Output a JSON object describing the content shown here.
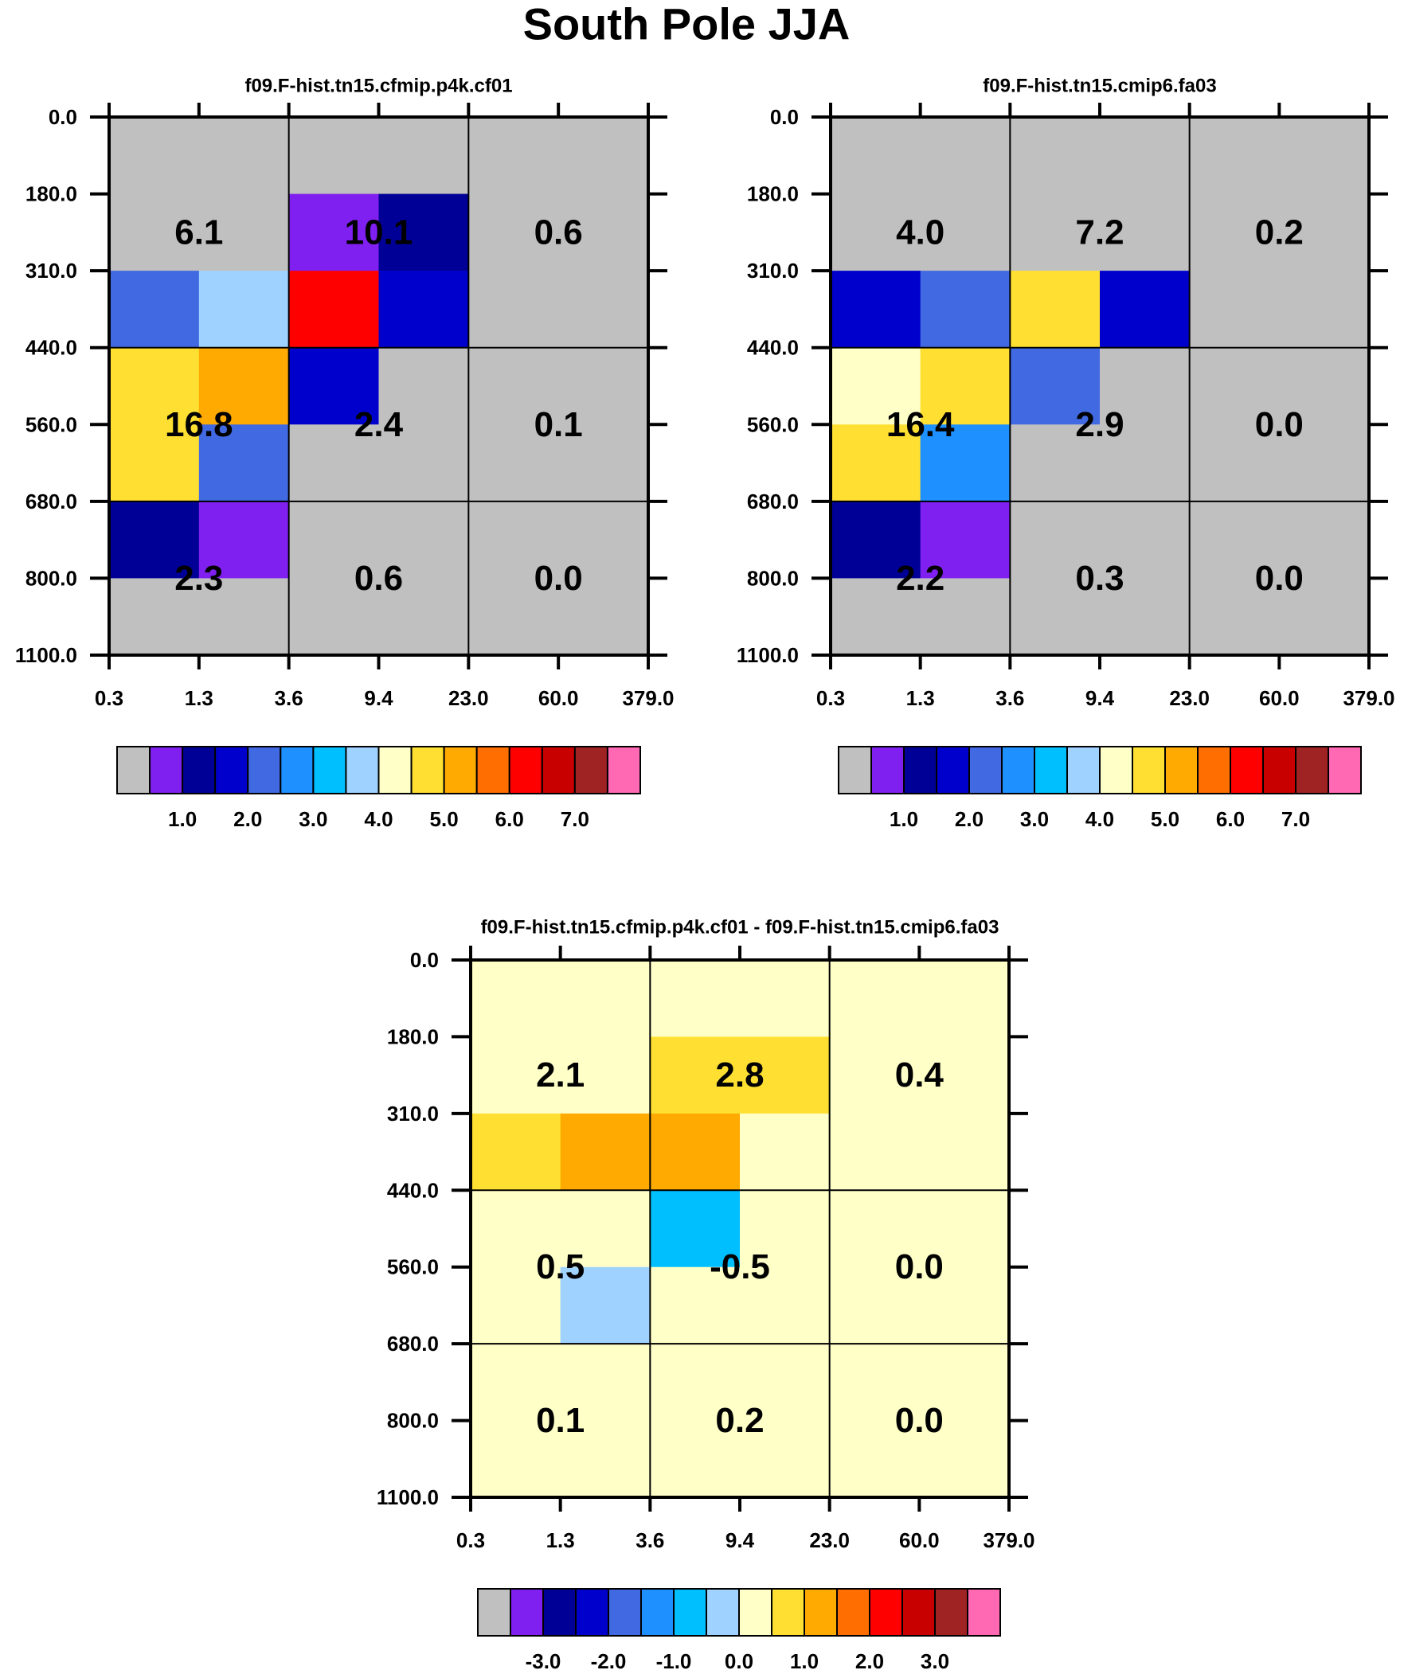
{
  "title": "South Pole JJA",
  "palette": [
    "#c0c0c0",
    "#8020f0",
    "#000096",
    "#0000cd",
    "#4169e1",
    "#1e90ff",
    "#00bfff",
    "#a0d2ff",
    "#ffffc8",
    "#ffe032",
    "#ffaa00",
    "#ff6e00",
    "#ff0000",
    "#c80000",
    "#a02323",
    "#ff69b4"
  ],
  "chart_data": [
    {
      "type": "heatmap",
      "title": "f09.F-hist.tn15.cfmip.p4k.cf01",
      "x_ticks": [
        "0.3",
        "1.3",
        "3.6",
        "9.4",
        "23.0",
        "60.0",
        "379.0"
      ],
      "y_ticks": [
        "0.0",
        "180.0",
        "310.0",
        "440.0",
        "560.0",
        "680.0",
        "800.0",
        "1100.0"
      ],
      "cell_bins": [
        [
          0,
          0,
          0,
          0,
          0,
          0
        ],
        [
          0,
          0,
          1,
          2,
          0,
          0
        ],
        [
          4,
          7,
          12,
          3,
          0,
          0
        ],
        [
          9,
          10,
          3,
          0,
          0,
          0
        ],
        [
          9,
          4,
          0,
          0,
          0,
          0
        ],
        [
          2,
          1,
          0,
          0,
          0,
          0
        ],
        [
          0,
          0,
          0,
          0,
          0,
          0
        ]
      ],
      "box_values": [
        [
          "6.1",
          "10.1",
          "0.6"
        ],
        [
          "16.8",
          "2.4",
          "0.1"
        ],
        [
          "2.3",
          "0.6",
          "0.0"
        ]
      ],
      "colorbar_labels": [
        "1.0",
        "2.0",
        "3.0",
        "4.0",
        "5.0",
        "6.0",
        "7.0"
      ]
    },
    {
      "type": "heatmap",
      "title": "f09.F-hist.tn15.cmip6.fa03",
      "x_ticks": [
        "0.3",
        "1.3",
        "3.6",
        "9.4",
        "23.0",
        "60.0",
        "379.0"
      ],
      "y_ticks": [
        "0.0",
        "180.0",
        "310.0",
        "440.0",
        "560.0",
        "680.0",
        "800.0",
        "1100.0"
      ],
      "cell_bins": [
        [
          0,
          0,
          0,
          0,
          0,
          0
        ],
        [
          0,
          0,
          0,
          0,
          0,
          0
        ],
        [
          3,
          4,
          9,
          3,
          0,
          0
        ],
        [
          8,
          9,
          4,
          0,
          0,
          0
        ],
        [
          9,
          5,
          0,
          0,
          0,
          0
        ],
        [
          2,
          1,
          0,
          0,
          0,
          0
        ],
        [
          0,
          0,
          0,
          0,
          0,
          0
        ]
      ],
      "box_values": [
        [
          "4.0",
          "7.2",
          "0.2"
        ],
        [
          "16.4",
          "2.9",
          "0.0"
        ],
        [
          "2.2",
          "0.3",
          "0.0"
        ]
      ],
      "colorbar_labels": [
        "1.0",
        "2.0",
        "3.0",
        "4.0",
        "5.0",
        "6.0",
        "7.0"
      ]
    },
    {
      "type": "heatmap",
      "title": "f09.F-hist.tn15.cfmip.p4k.cf01 - f09.F-hist.tn15.cmip6.fa03",
      "x_ticks": [
        "0.3",
        "1.3",
        "3.6",
        "9.4",
        "23.0",
        "60.0",
        "379.0"
      ],
      "y_ticks": [
        "0.0",
        "180.0",
        "310.0",
        "440.0",
        "560.0",
        "680.0",
        "800.0",
        "1100.0"
      ],
      "cell_bins": [
        [
          8,
          8,
          8,
          8,
          8,
          8
        ],
        [
          8,
          8,
          9,
          9,
          8,
          8
        ],
        [
          9,
          10,
          10,
          8,
          8,
          8
        ],
        [
          8,
          8,
          6,
          8,
          8,
          8
        ],
        [
          8,
          7,
          8,
          8,
          8,
          8
        ],
        [
          8,
          8,
          8,
          8,
          8,
          8
        ],
        [
          8,
          8,
          8,
          8,
          8,
          8
        ]
      ],
      "box_values": [
        [
          "2.1",
          "2.8",
          "0.4"
        ],
        [
          "0.5",
          "-0.5",
          "0.0"
        ],
        [
          "0.1",
          "0.2",
          "0.0"
        ]
      ],
      "colorbar_labels": [
        "-3.0",
        "-2.0",
        "-1.0",
        "0.0",
        "1.0",
        "2.0",
        "3.0"
      ]
    }
  ]
}
